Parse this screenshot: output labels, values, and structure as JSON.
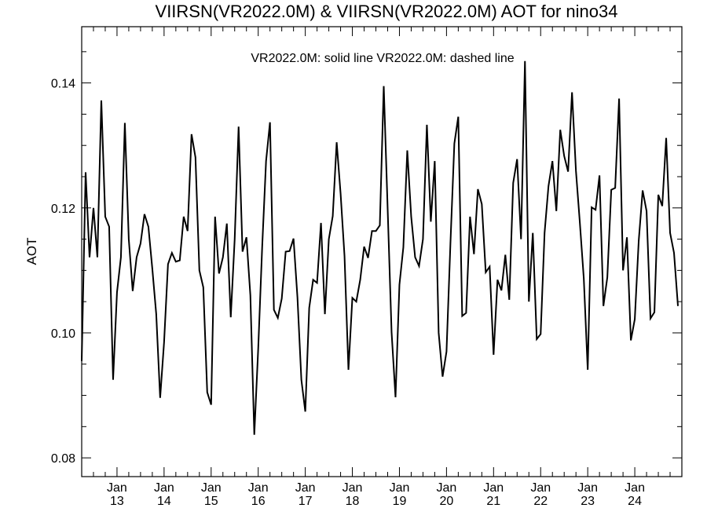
{
  "chart_data": {
    "type": "line",
    "title": "VIIRSN(VR2022.0M) & VIIRSN(VR2022.0M)  AOT for nino34",
    "annotation": "VR2022.0M: solid line   VR2022.0M: dashed line",
    "xlabel": "",
    "ylabel": "AOT",
    "xlim": [
      2012.25,
      2025.0
    ],
    "ylim": [
      0.077,
      0.149
    ],
    "yticks": [
      0.08,
      0.1,
      0.12,
      0.14
    ],
    "ytick_labels": [
      "0.08",
      "0.10",
      "0.12",
      "0.14"
    ],
    "xtick_labels": [
      {
        "month": "Jan",
        "year": "13"
      },
      {
        "month": "Jan",
        "year": "14"
      },
      {
        "month": "Jan",
        "year": "15"
      },
      {
        "month": "Jan",
        "year": "16"
      },
      {
        "month": "Jan",
        "year": "17"
      },
      {
        "month": "Jan",
        "year": "18"
      },
      {
        "month": "Jan",
        "year": "19"
      },
      {
        "month": "Jan",
        "year": "20"
      },
      {
        "month": "Jan",
        "year": "21"
      },
      {
        "month": "Jan",
        "year": "22"
      },
      {
        "month": "Jan",
        "year": "23"
      },
      {
        "month": "Jan",
        "year": "24"
      }
    ],
    "x_start": "2012-04",
    "series": [
      {
        "name": "VR2022.0M",
        "style": "solid",
        "color": "#000000",
        "values": [
          0.0955,
          0.1257,
          0.1121,
          0.12,
          0.1121,
          0.1372,
          0.1186,
          0.117,
          0.0925,
          0.1065,
          0.1121,
          0.1336,
          0.115,
          0.1067,
          0.1121,
          0.1143,
          0.119,
          0.117,
          0.1103,
          0.103,
          0.0896,
          0.0985,
          0.111,
          0.1128,
          0.1114,
          0.1116,
          0.1186,
          0.1163,
          0.1318,
          0.1281,
          0.11,
          0.1073,
          0.0905,
          0.0885,
          0.1186,
          0.1095,
          0.1121,
          0.1175,
          0.1025,
          0.115,
          0.133,
          0.113,
          0.1153,
          0.106,
          0.0837,
          0.0975,
          0.1136,
          0.1275,
          0.1337,
          0.1037,
          0.1024,
          0.1055,
          0.113,
          0.1131,
          0.1151,
          0.1057,
          0.0925,
          0.0874,
          0.104,
          0.1085,
          0.108,
          0.1176,
          0.103,
          0.115,
          0.1187,
          0.1305,
          0.1223,
          0.1123,
          0.0941,
          0.1056,
          0.105,
          0.1085,
          0.1138,
          0.112,
          0.1163,
          0.1163,
          0.1172,
          0.1395,
          0.1198,
          0.1001,
          0.0897,
          0.1077,
          0.1137,
          0.1292,
          0.1186,
          0.1121,
          0.1107,
          0.115,
          0.1333,
          0.1178,
          0.1275,
          0.1,
          0.093,
          0.097,
          0.1143,
          0.1303,
          0.1346,
          0.1027,
          0.1032,
          0.1186,
          0.1126,
          0.123,
          0.1206,
          0.1097,
          0.1106,
          0.0965,
          0.1085,
          0.1068,
          0.1125,
          0.1053,
          0.124,
          0.1278,
          0.115,
          0.1435,
          0.105,
          0.116,
          0.099,
          0.0998,
          0.116,
          0.1235,
          0.1275,
          0.1195,
          0.1325,
          0.1283,
          0.1258,
          0.1385,
          0.1259,
          0.1176,
          0.1087,
          0.0941,
          0.1201,
          0.1197,
          0.1252,
          0.1043,
          0.1089,
          0.1229,
          0.1232,
          0.1375,
          0.11,
          0.1153,
          0.0988,
          0.1022,
          0.1147,
          0.1228,
          0.1195,
          0.1023,
          0.1033,
          0.1221,
          0.1203,
          0.1312,
          0.116,
          0.1128,
          0.1043
        ]
      }
    ]
  }
}
